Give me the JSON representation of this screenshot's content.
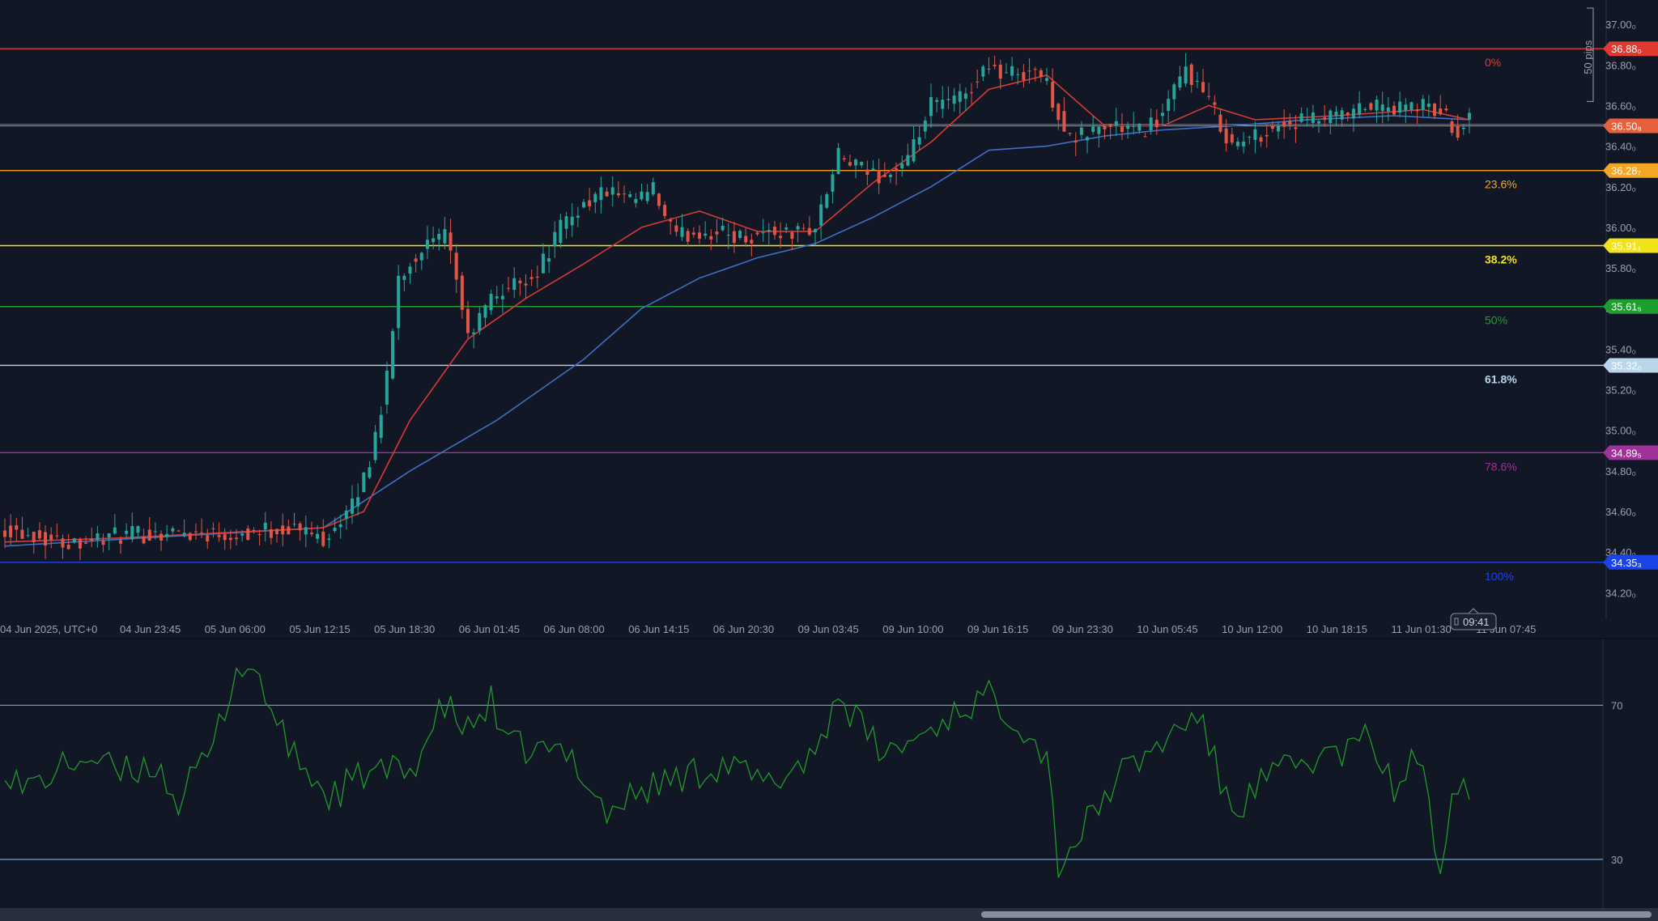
{
  "chart_data": [
    {
      "type": "candlestick",
      "x_ticks": [
        "04 Jun 2025, UTC+0",
        "04 Jun 23:45",
        "05 Jun 06:00",
        "05 Jun 12:15",
        "05 Jun 18:30",
        "06 Jun 01:45",
        "06 Jun 08:00",
        "06 Jun 14:15",
        "06 Jun 20:30",
        "09 Jun 03:45",
        "09 Jun 10:00",
        "09 Jun 16:15",
        "09 Jun 23:30",
        "10 Jun 05:45",
        "10 Jun 12:00",
        "10 Jun 18:15",
        "11 Jun 01:30",
        "11 Jun 07:45"
      ],
      "y_ticks": [
        "37.00₀",
        "36.80₀",
        "36.60₀",
        "36.40₀",
        "36.20₀",
        "36.00₀",
        "35.80₀",
        "35.60₀",
        "35.40₀",
        "35.20₀",
        "35.00₀",
        "34.80₀",
        "34.60₀",
        "34.40₀",
        "34.20₀"
      ],
      "y_tick_values": [
        37.0,
        36.8,
        36.6,
        36.4,
        36.2,
        36.0,
        35.8,
        35.6,
        35.4,
        35.2,
        35.0,
        34.8,
        34.6,
        34.4,
        34.2
      ],
      "ylim": [
        34.07,
        37.12
      ],
      "price_path": [
        [
          0,
          34.52
        ],
        [
          10,
          34.45
        ],
        [
          20,
          34.48
        ],
        [
          30,
          34.5
        ],
        [
          40,
          34.49
        ],
        [
          50,
          34.52
        ],
        [
          55,
          34.47
        ],
        [
          60,
          34.62
        ],
        [
          63,
          34.85
        ],
        [
          66,
          35.25
        ],
        [
          68,
          35.75
        ],
        [
          72,
          35.9
        ],
        [
          76,
          35.95
        ],
        [
          78,
          35.75
        ],
        [
          80,
          35.45
        ],
        [
          84,
          35.65
        ],
        [
          88,
          35.72
        ],
        [
          92,
          35.78
        ],
        [
          96,
          36.0
        ],
        [
          100,
          36.12
        ],
        [
          104,
          36.18
        ],
        [
          108,
          36.12
        ],
        [
          112,
          36.18
        ],
        [
          114,
          36.05
        ],
        [
          116,
          35.95
        ],
        [
          120,
          35.98
        ],
        [
          124,
          35.97
        ],
        [
          128,
          35.95
        ],
        [
          132,
          35.98
        ],
        [
          136,
          35.97
        ],
        [
          140,
          36.0
        ],
        [
          144,
          36.35
        ],
        [
          148,
          36.28
        ],
        [
          152,
          36.25
        ],
        [
          156,
          36.32
        ],
        [
          160,
          36.6
        ],
        [
          164,
          36.62
        ],
        [
          168,
          36.72
        ],
        [
          170,
          36.82
        ],
        [
          172,
          36.75
        ],
        [
          178,
          36.78
        ],
        [
          180,
          36.7
        ],
        [
          184,
          36.42
        ],
        [
          188,
          36.48
        ],
        [
          192,
          36.5
        ],
        [
          196,
          36.47
        ],
        [
          200,
          36.55
        ],
        [
          204,
          36.78
        ],
        [
          208,
          36.62
        ],
        [
          212,
          36.4
        ],
        [
          216,
          36.45
        ],
        [
          220,
          36.5
        ],
        [
          224,
          36.52
        ],
        [
          228,
          36.53
        ],
        [
          232,
          36.55
        ],
        [
          236,
          36.6
        ],
        [
          240,
          36.58
        ],
        [
          244,
          36.6
        ],
        [
          248,
          36.57
        ],
        [
          251,
          36.48
        ],
        [
          253,
          36.55
        ]
      ],
      "ema_fast_path": [
        [
          0,
          34.45
        ],
        [
          20,
          34.47
        ],
        [
          55,
          34.52
        ],
        [
          62,
          34.6
        ],
        [
          70,
          35.05
        ],
        [
          80,
          35.45
        ],
        [
          90,
          35.65
        ],
        [
          100,
          35.82
        ],
        [
          110,
          36.0
        ],
        [
          120,
          36.08
        ],
        [
          130,
          35.98
        ],
        [
          140,
          35.98
        ],
        [
          150,
          36.22
        ],
        [
          160,
          36.42
        ],
        [
          170,
          36.68
        ],
        [
          180,
          36.75
        ],
        [
          190,
          36.5
        ],
        [
          200,
          36.5
        ],
        [
          208,
          36.6
        ],
        [
          216,
          36.53
        ],
        [
          230,
          36.55
        ],
        [
          245,
          36.58
        ],
        [
          253,
          36.53
        ]
      ],
      "ema_slow_path": [
        [
          0,
          34.43
        ],
        [
          30,
          34.48
        ],
        [
          55,
          34.52
        ],
        [
          70,
          34.8
        ],
        [
          85,
          35.05
        ],
        [
          100,
          35.35
        ],
        [
          110,
          35.6
        ],
        [
          120,
          35.75
        ],
        [
          130,
          35.85
        ],
        [
          140,
          35.92
        ],
        [
          150,
          36.05
        ],
        [
          160,
          36.2
        ],
        [
          170,
          36.38
        ],
        [
          180,
          36.4
        ],
        [
          190,
          36.45
        ],
        [
          200,
          36.48
        ],
        [
          212,
          36.5
        ],
        [
          225,
          36.53
        ],
        [
          240,
          36.55
        ],
        [
          253,
          36.53
        ]
      ],
      "fib_levels": [
        {
          "label": "0%",
          "price": 36.88,
          "price_label": "36.88₀",
          "color": "#e03a30"
        },
        {
          "label": "23.6%",
          "price": 36.28,
          "price_label": "36.28₇",
          "color": "#f5a623"
        },
        {
          "label": "38.2%",
          "price": 35.91,
          "price_label": "35.91₁",
          "color": "#f2e21a"
        },
        {
          "label": "50%",
          "price": 35.61,
          "price_label": "35.61₅",
          "color": "#1e9e2e"
        },
        {
          "label": "61.8%",
          "price": 35.32,
          "price_label": "35.32₀",
          "color": "#b9d6ea"
        },
        {
          "label": "78.6%",
          "price": 34.89,
          "price_label": "34.89₅",
          "color": "#a0309a"
        },
        {
          "label": "100%",
          "price": 34.35,
          "price_label": "34.35₃",
          "color": "#1a44e8"
        }
      ],
      "current_price": {
        "price": 36.5,
        "price_label": "36.50₈",
        "color": "#e8603a"
      },
      "time_badge": "09:41",
      "measure_label": "50 pips",
      "colors": {
        "up": "#26a69a",
        "down": "#e05545",
        "ema_fast": "#d63a33",
        "ema_slow": "#3f6fc4",
        "grid_text": "#9aa0ad"
      }
    },
    {
      "type": "line",
      "indicator": "RSI",
      "y_ticks": [
        "70",
        "30"
      ],
      "y_tick_values": [
        70,
        30
      ],
      "ylim": [
        22,
        85
      ],
      "levels": [
        70,
        30
      ],
      "path": [
        [
          0,
          55
        ],
        [
          3,
          48
        ],
        [
          8,
          52
        ],
        [
          14,
          57
        ],
        [
          20,
          52
        ],
        [
          26,
          55
        ],
        [
          30,
          45
        ],
        [
          36,
          59
        ],
        [
          40,
          80
        ],
        [
          44,
          78
        ],
        [
          47,
          64
        ],
        [
          50,
          57
        ],
        [
          56,
          46
        ],
        [
          62,
          52
        ],
        [
          70,
          53
        ],
        [
          76,
          70
        ],
        [
          80,
          63
        ],
        [
          84,
          71
        ],
        [
          86,
          60
        ],
        [
          92,
          58
        ],
        [
          98,
          57
        ],
        [
          104,
          42
        ],
        [
          110,
          48
        ],
        [
          118,
          52
        ],
        [
          124,
          55
        ],
        [
          132,
          49
        ],
        [
          140,
          58
        ],
        [
          144,
          73
        ],
        [
          148,
          64
        ],
        [
          152,
          57
        ],
        [
          158,
          62
        ],
        [
          166,
          70
        ],
        [
          170,
          72
        ],
        [
          174,
          68
        ],
        [
          180,
          57
        ],
        [
          182,
          29
        ],
        [
          186,
          37
        ],
        [
          192,
          51
        ],
        [
          198,
          58
        ],
        [
          206,
          68
        ],
        [
          212,
          42
        ],
        [
          218,
          51
        ],
        [
          226,
          56
        ],
        [
          232,
          58
        ],
        [
          236,
          62
        ],
        [
          240,
          47
        ],
        [
          244,
          58
        ],
        [
          248,
          27
        ],
        [
          250,
          51
        ],
        [
          253,
          50
        ]
      ],
      "color": "#1f9a2a",
      "level_color": "#5aa9d8"
    }
  ]
}
